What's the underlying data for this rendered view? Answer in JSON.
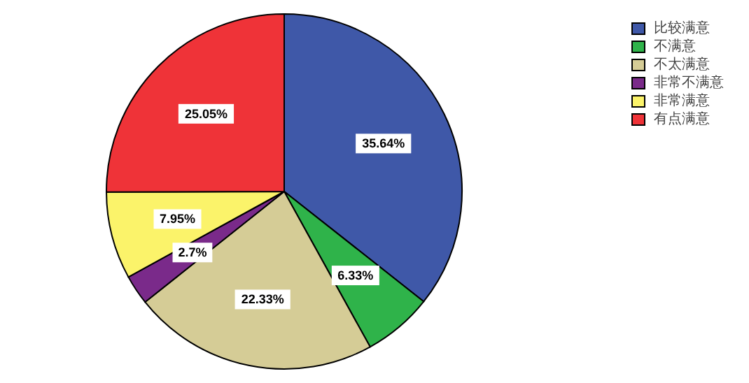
{
  "chart_data": {
    "type": "pie",
    "categories": [
      "比较满意",
      "不满意",
      "不太满意",
      "非常不满意",
      "非常满意",
      "有点满意"
    ],
    "values": [
      35.64,
      6.33,
      22.33,
      2.7,
      7.95,
      25.05
    ],
    "value_labels": [
      "35.64%",
      "6.33%",
      "22.33%",
      "2.7%",
      "7.95%",
      "25.05%"
    ],
    "colors": [
      "#3f58a8",
      "#2fb34a",
      "#d5cc96",
      "#7a2a8a",
      "#fbf36a",
      "#ef3338"
    ],
    "legend": "top right"
  }
}
